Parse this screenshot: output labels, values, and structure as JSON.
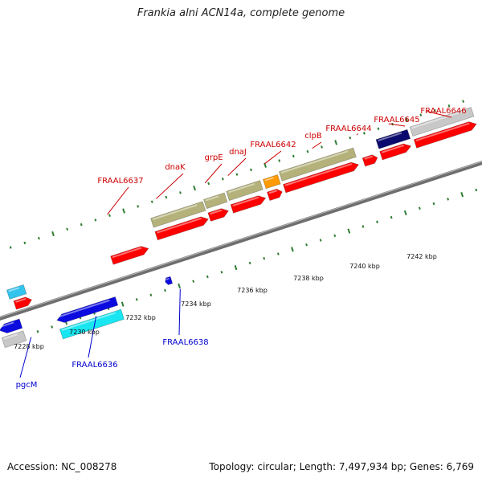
{
  "title": "Frankia alni ACN14a, complete genome",
  "footer": {
    "accession": "Accession: NC_008278",
    "topology": "Topology: circular; Length: 7,497,934 bp; Genes: 6,769"
  },
  "colors": {
    "label_red": "#cc0000",
    "label_blue": "#0000cc",
    "tick_green": "#2e7d32",
    "backbone": "#6e6e6e",
    "cds_red": "#ff0000",
    "cds_blue": "#0b0be0",
    "cds_cyan": "#19e6f0",
    "cds_navy": "#0a0a6e",
    "cds_olive": "#b4b27a",
    "cds_orange": "#ff9a00",
    "cds_grey": "#c8c8c8",
    "cds_light_blue": "#33c4ee"
  },
  "scale_labels": [
    "7228 kbp",
    "7230 kbp",
    "7232 kbp",
    "7234 kbp",
    "7236 kbp",
    "7238 kbp",
    "7240 kbp",
    "7242 kbp"
  ],
  "gene_labels_top": [
    "FRAAL6637",
    "dnaK",
    "grpE",
    "dnaJ",
    "FRAAL6642",
    "clpB",
    "FRAAL6644",
    "FRAAL6645",
    "FRAAL6646"
  ],
  "gene_labels_bottom": [
    "pgcM",
    "FRAAL6636",
    "FRAAL6638"
  ]
}
